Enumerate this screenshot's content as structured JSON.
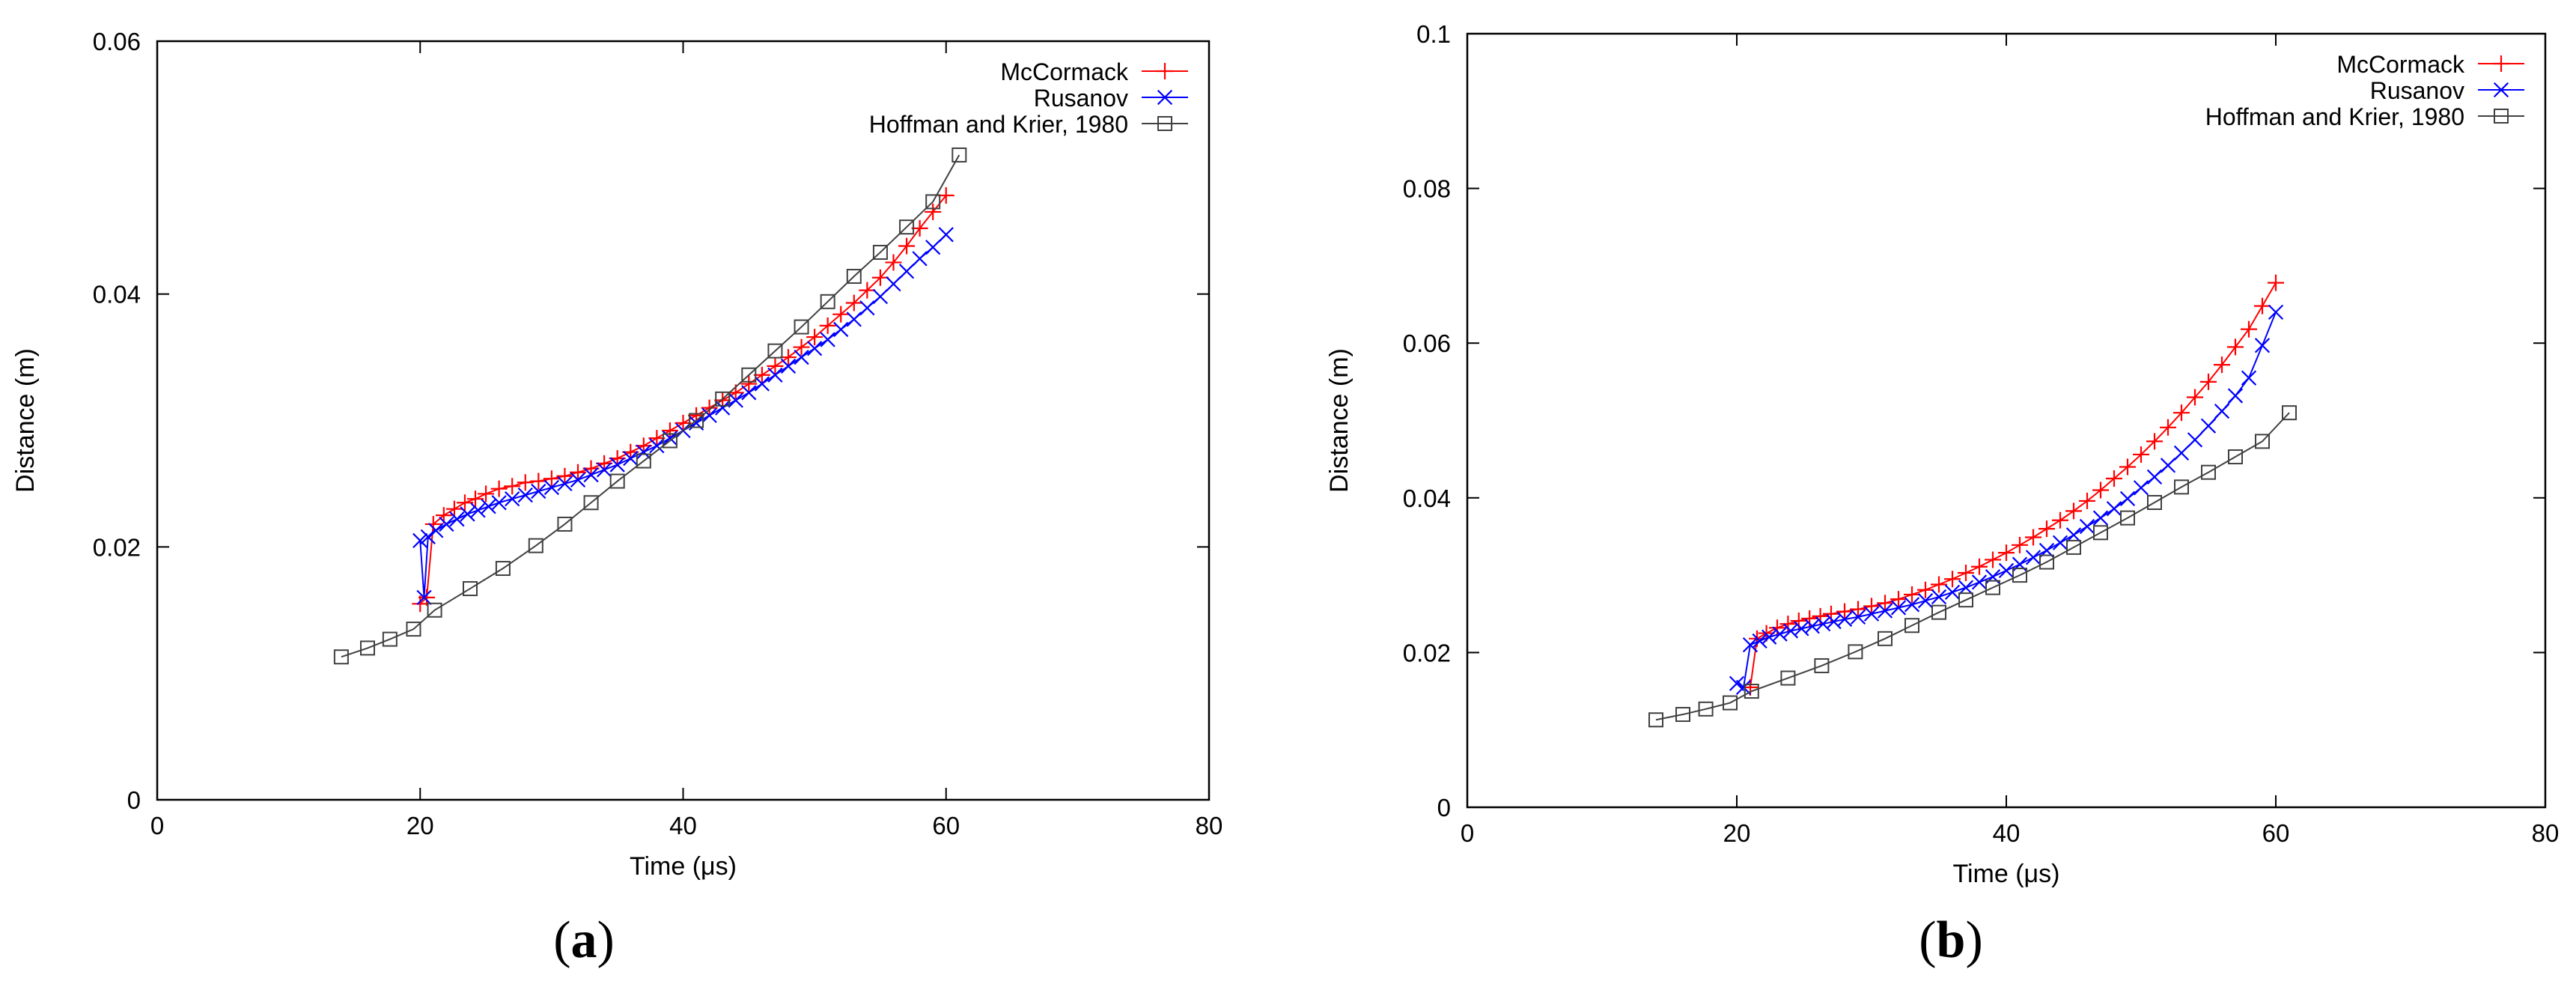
{
  "figure": {
    "colors": {
      "mccormack": "#ff0000",
      "rusanov": "#0000ff",
      "hoffman": "#404040",
      "axis": "#000000"
    }
  },
  "chart_data": [
    {
      "type": "line",
      "caption_letter": "a",
      "xlabel": "Time (μs)",
      "ylabel": "Distance (m)",
      "xlim": [
        0,
        80
      ],
      "ylim": [
        0,
        0.06
      ],
      "xticks": [
        0,
        20,
        40,
        60,
        80
      ],
      "xtick_labels": [
        "0",
        "20",
        "40",
        "60",
        "80"
      ],
      "yticks": [
        0,
        0.02,
        0.04,
        0.06
      ],
      "ytick_labels": [
        "0",
        "0.02",
        "0.04",
        "0.06"
      ],
      "legend": "top-right",
      "series": [
        {
          "name": "McCormack",
          "marker": "plus",
          "x": [
            20,
            20.5,
            21,
            21.8,
            22.6,
            23.4,
            24.2,
            25,
            26,
            27,
            28,
            29,
            30,
            31,
            32,
            33,
            34,
            35,
            36,
            37,
            38,
            39,
            40,
            41,
            42,
            43,
            44,
            45,
            46,
            47,
            48,
            49,
            50,
            51,
            52,
            53,
            54,
            55,
            56,
            57,
            58,
            59,
            60
          ],
          "y": [
            0.0155,
            0.016,
            0.0218,
            0.0225,
            0.023,
            0.0235,
            0.0238,
            0.0242,
            0.0246,
            0.0248,
            0.0251,
            0.0252,
            0.0254,
            0.0256,
            0.0259,
            0.0262,
            0.0266,
            0.027,
            0.0275,
            0.028,
            0.0286,
            0.0292,
            0.0298,
            0.0304,
            0.031,
            0.0316,
            0.0322,
            0.0329,
            0.0336,
            0.0343,
            0.035,
            0.0358,
            0.0366,
            0.0375,
            0.0384,
            0.0393,
            0.0403,
            0.0413,
            0.0425,
            0.0438,
            0.0452,
            0.0465,
            0.0478
          ]
        },
        {
          "name": "Rusanov",
          "marker": "cross",
          "x": [
            20,
            20.3,
            20.6,
            21.2,
            22,
            22.8,
            23.6,
            24.4,
            25.2,
            26,
            27,
            28,
            29,
            30,
            31,
            32,
            33,
            34,
            35,
            36,
            37,
            38,
            39,
            40,
            41,
            42,
            43,
            44,
            45,
            46,
            47,
            48,
            49,
            50,
            51,
            52,
            53,
            54,
            55,
            56,
            57,
            58,
            59,
            60
          ],
          "y": [
            0.0205,
            0.016,
            0.0208,
            0.0213,
            0.0218,
            0.0222,
            0.0226,
            0.0229,
            0.0232,
            0.0235,
            0.0238,
            0.0241,
            0.0244,
            0.0247,
            0.025,
            0.0253,
            0.0257,
            0.0261,
            0.0265,
            0.027,
            0.0275,
            0.028,
            0.0286,
            0.0292,
            0.0298,
            0.0304,
            0.031,
            0.0316,
            0.0322,
            0.0329,
            0.0336,
            0.0343,
            0.035,
            0.0357,
            0.0364,
            0.0372,
            0.038,
            0.0389,
            0.0398,
            0.0408,
            0.0418,
            0.0428,
            0.0437,
            0.0447
          ]
        },
        {
          "name": "Hoffman and Krier, 1980",
          "marker": "square",
          "x": [
            14,
            16,
            17.7,
            19.5,
            21.1,
            23.8,
            26.3,
            28.8,
            31,
            33,
            35,
            37,
            39,
            41,
            43,
            45,
            47,
            49,
            51,
            53,
            55,
            57,
            59,
            61
          ],
          "y": [
            0.0113,
            0.012,
            0.0127,
            0.0135,
            0.015,
            0.0167,
            0.0183,
            0.0201,
            0.0218,
            0.0235,
            0.0252,
            0.0268,
            0.0284,
            0.03,
            0.0317,
            0.0336,
            0.0355,
            0.0374,
            0.0394,
            0.0414,
            0.0433,
            0.0453,
            0.0473,
            0.051
          ]
        }
      ]
    },
    {
      "type": "line",
      "caption_letter": "b",
      "xlabel": "Time (μs)",
      "ylabel": "Distance (m)",
      "xlim": [
        0,
        80
      ],
      "ylim": [
        0,
        0.1
      ],
      "xticks": [
        0,
        20,
        40,
        60,
        80
      ],
      "xtick_labels": [
        "0",
        "20",
        "40",
        "60",
        "80"
      ],
      "yticks": [
        0,
        0.02,
        0.04,
        0.06,
        0.08,
        0.1
      ],
      "ytick_labels": [
        "0",
        "0.02",
        "0.04",
        "0.06",
        "0.08",
        "0.1"
      ],
      "legend": "top-right",
      "series": [
        {
          "name": "McCormack",
          "marker": "plus",
          "x": [
            21,
            21.5,
            22.2,
            23,
            23.8,
            24.6,
            25.4,
            26.2,
            27,
            28,
            29,
            30,
            31,
            32,
            33,
            34,
            35,
            36,
            37,
            38,
            39,
            40,
            41,
            42,
            43,
            44,
            45,
            46,
            47,
            48,
            49,
            50,
            51,
            52,
            53,
            54,
            55,
            56,
            57,
            58,
            59,
            60
          ],
          "y": [
            0.0155,
            0.0218,
            0.0225,
            0.0232,
            0.0237,
            0.0241,
            0.0244,
            0.0247,
            0.025,
            0.0253,
            0.0256,
            0.026,
            0.0264,
            0.0269,
            0.0275,
            0.0281,
            0.0288,
            0.0295,
            0.0303,
            0.0311,
            0.032,
            0.0329,
            0.0339,
            0.0349,
            0.036,
            0.0371,
            0.0383,
            0.0396,
            0.041,
            0.0425,
            0.044,
            0.0456,
            0.0473,
            0.0491,
            0.051,
            0.053,
            0.055,
            0.0572,
            0.0595,
            0.0618,
            0.0648,
            0.0678
          ]
        },
        {
          "name": "Rusanov",
          "marker": "cross",
          "x": [
            20,
            20.5,
            21,
            21.7,
            22.4,
            23.2,
            24,
            24.8,
            25.6,
            26.4,
            27.2,
            28,
            29,
            30,
            31,
            32,
            33,
            34,
            35,
            36,
            37,
            38,
            39,
            40,
            41,
            42,
            43,
            44,
            45,
            46,
            47,
            48,
            49,
            50,
            51,
            52,
            53,
            54,
            55,
            56,
            57,
            58,
            59,
            60
          ],
          "y": [
            0.016,
            0.0155,
            0.021,
            0.0215,
            0.022,
            0.0224,
            0.0228,
            0.0231,
            0.0234,
            0.0237,
            0.024,
            0.0243,
            0.0246,
            0.025,
            0.0254,
            0.0258,
            0.0262,
            0.0267,
            0.0272,
            0.0278,
            0.0284,
            0.0291,
            0.0298,
            0.0306,
            0.0314,
            0.0323,
            0.0332,
            0.0342,
            0.0352,
            0.0363,
            0.0374,
            0.0386,
            0.0399,
            0.0413,
            0.0427,
            0.0442,
            0.0458,
            0.0475,
            0.0493,
            0.0512,
            0.0532,
            0.0555,
            0.0597,
            0.064
          ]
        },
        {
          "name": "Hoffman and Krier, 1980",
          "marker": "square",
          "x": [
            14,
            16,
            17.7,
            19.5,
            21.1,
            23.8,
            26.3,
            28.8,
            31,
            33,
            35,
            37,
            39,
            41,
            43,
            45,
            47,
            49,
            51,
            53,
            55,
            57,
            59,
            61
          ],
          "y": [
            0.0113,
            0.012,
            0.0127,
            0.0135,
            0.015,
            0.0167,
            0.0183,
            0.0201,
            0.0218,
            0.0235,
            0.0252,
            0.0268,
            0.0284,
            0.03,
            0.0317,
            0.0336,
            0.0355,
            0.0374,
            0.0394,
            0.0414,
            0.0433,
            0.0453,
            0.0473,
            0.051
          ]
        }
      ]
    }
  ]
}
